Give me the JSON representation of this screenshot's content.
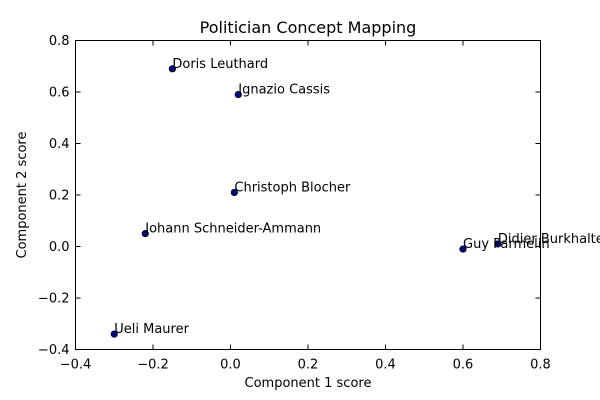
{
  "chart_data": {
    "type": "scatter",
    "title": "Politician Concept Mapping",
    "xlabel": "Component 1 score",
    "ylabel": "Component 2 score",
    "xlim": [
      -0.4,
      0.8
    ],
    "ylim": [
      -0.4,
      0.8
    ],
    "xticks": [
      -0.4,
      -0.2,
      0.0,
      0.2,
      0.4,
      0.6,
      0.8
    ],
    "yticks": [
      -0.4,
      -0.2,
      0.0,
      0.2,
      0.4,
      0.6,
      0.8
    ],
    "xtick_labels": [
      "−0.4",
      "−0.2",
      "0.0",
      "0.2",
      "0.4",
      "0.6",
      "0.8"
    ],
    "ytick_labels": [
      "−0.4",
      "−0.2",
      "0.0",
      "0.2",
      "0.4",
      "0.6",
      "0.8"
    ],
    "grid": false,
    "point_color": "#00008b",
    "points": [
      {
        "label": "Doris Leuthard",
        "x": -0.15,
        "y": 0.69
      },
      {
        "label": "Ignazio Cassis",
        "x": 0.02,
        "y": 0.59
      },
      {
        "label": "Christoph Blocher",
        "x": 0.01,
        "y": 0.21
      },
      {
        "label": "Johann Schneider-Ammann",
        "x": -0.22,
        "y": 0.05
      },
      {
        "label": "Didier Burkhalter",
        "x": 0.69,
        "y": 0.01
      },
      {
        "label": "Guy Parmelin",
        "x": 0.6,
        "y": -0.01
      },
      {
        "label": "Ueli Maurer",
        "x": -0.3,
        "y": -0.34
      }
    ]
  }
}
